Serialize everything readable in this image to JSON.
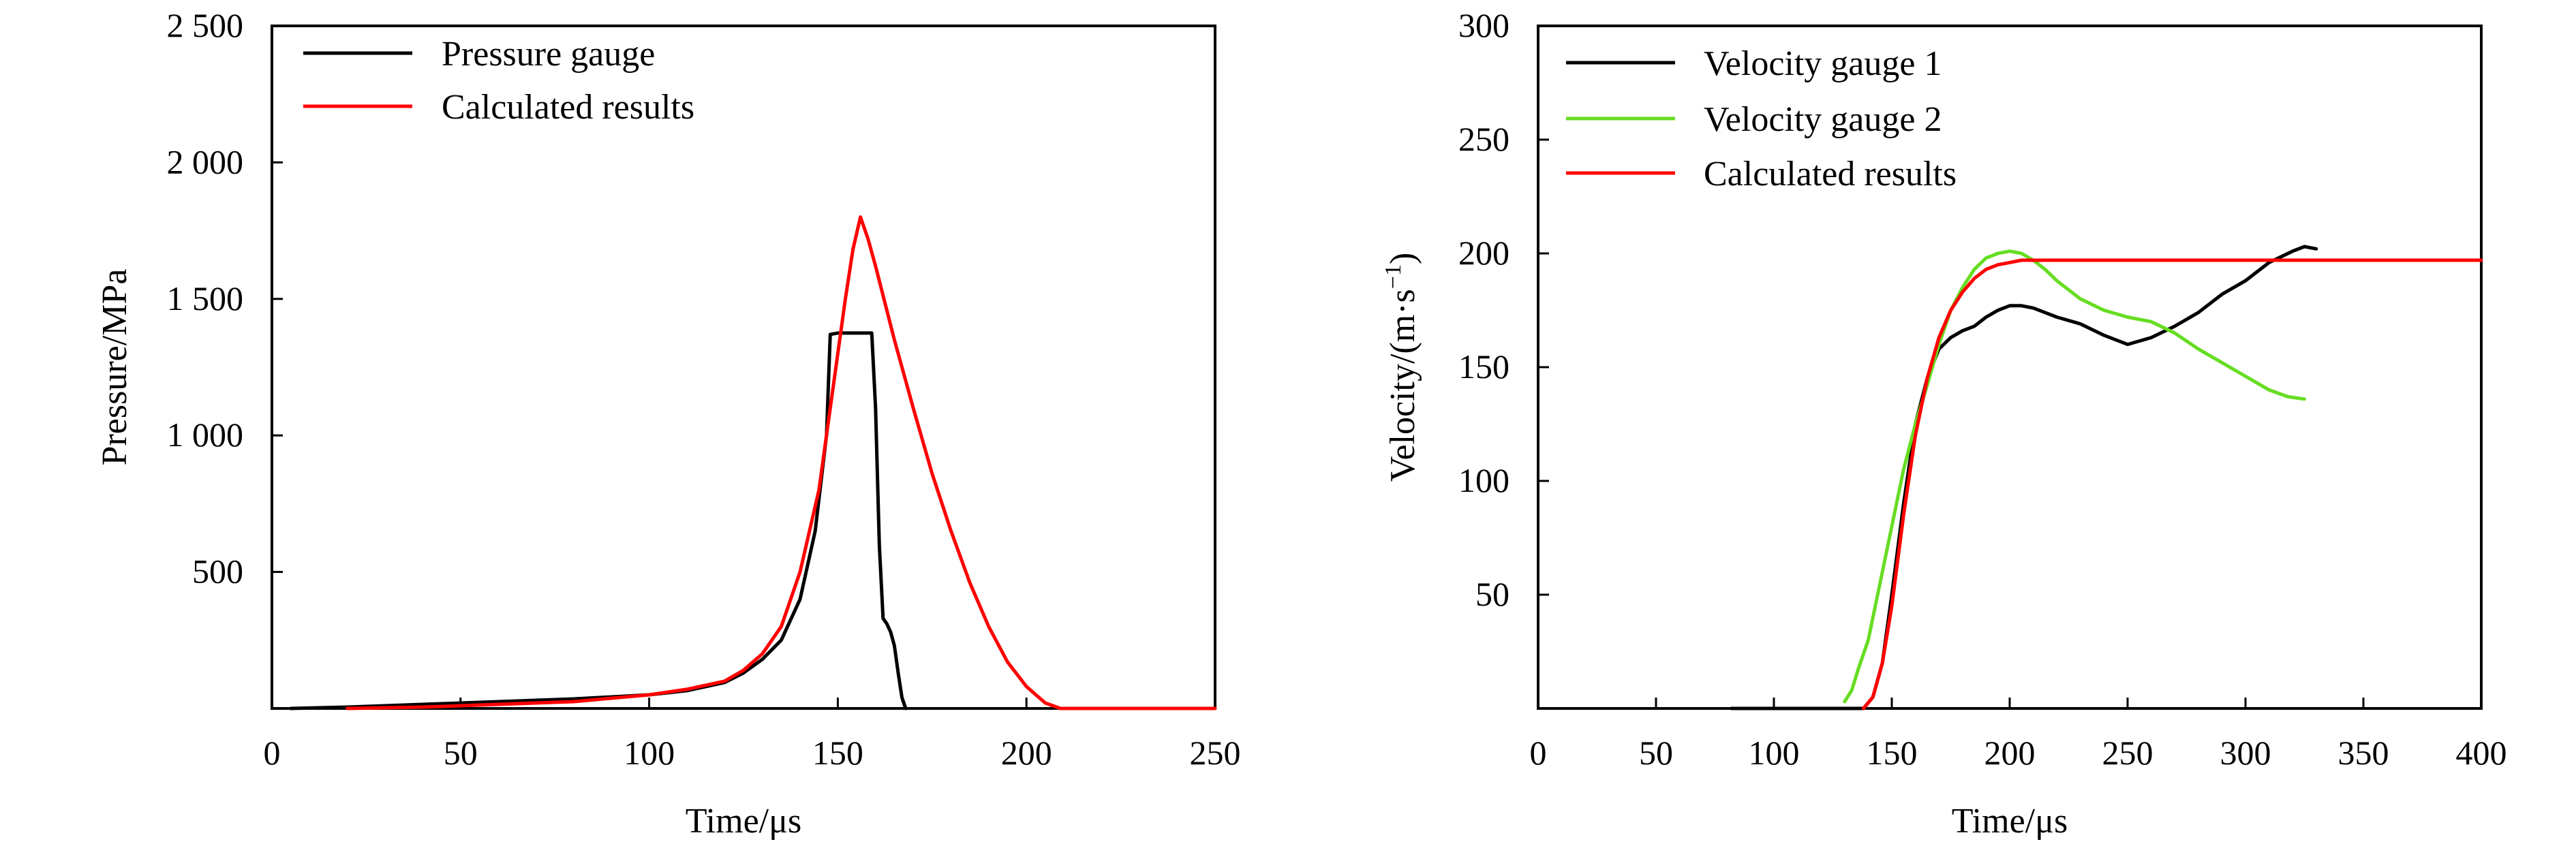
{
  "chart_data": [
    {
      "type": "line",
      "title": "",
      "xlabel": "Time/μs",
      "ylabel": "Pressure/MPa",
      "xlim": [
        0,
        250
      ],
      "ylim": [
        0,
        2500
      ],
      "xticks": [
        0,
        50,
        100,
        150,
        200,
        250
      ],
      "xtick_labels": [
        "0",
        "50",
        "100",
        "150",
        "200",
        "250"
      ],
      "yticks": [
        500,
        1000,
        1500,
        2000,
        2500
      ],
      "ytick_labels": [
        "500",
        "1 000",
        "1 500",
        "2 000",
        "2 500"
      ],
      "grid": false,
      "legend_position": "top-left",
      "series": [
        {
          "name": "Pressure gauge",
          "color": "#000000",
          "x": [
            5,
            20,
            40,
            60,
            80,
            100,
            110,
            120,
            125,
            130,
            135,
            140,
            144,
            147,
            148,
            150,
            152,
            155,
            158,
            159,
            160,
            161,
            162,
            163,
            164,
            165,
            166,
            167,
            168
          ],
          "y": [
            0,
            5,
            15,
            25,
            35,
            50,
            65,
            95,
            130,
            180,
            250,
            400,
            650,
            1000,
            1370,
            1375,
            1375,
            1375,
            1375,
            1375,
            1100,
            600,
            330,
            310,
            280,
            230,
            130,
            40,
            0
          ]
        },
        {
          "name": "Calculated results",
          "color": "#ff0000",
          "x": [
            20,
            40,
            60,
            80,
            100,
            110,
            120,
            125,
            130,
            135,
            140,
            145,
            148,
            150,
            152,
            154,
            156,
            158,
            160,
            165,
            170,
            175,
            180,
            185,
            190,
            195,
            200,
            205,
            209,
            250
          ],
          "y": [
            0,
            5,
            15,
            25,
            50,
            70,
            100,
            140,
            200,
            300,
            500,
            800,
            1100,
            1300,
            1500,
            1680,
            1800,
            1720,
            1620,
            1350,
            1100,
            860,
            650,
            460,
            300,
            170,
            80,
            20,
            0,
            0
          ]
        }
      ]
    },
    {
      "type": "line",
      "title": "",
      "xlabel": "Time/μs",
      "ylabel_main": "Velocity/(m·s",
      "ylabel_sup": "−1",
      "ylabel_end": ")",
      "xlim": [
        0,
        400
      ],
      "ylim": [
        0,
        300
      ],
      "xticks": [
        0,
        50,
        100,
        150,
        200,
        250,
        300,
        350,
        400
      ],
      "xtick_labels": [
        "0",
        "50",
        "100",
        "150",
        "200",
        "250",
        "300",
        "350",
        "400"
      ],
      "yticks": [
        50,
        100,
        150,
        200,
        250,
        300
      ],
      "ytick_labels": [
        "50",
        "100",
        "150",
        "200",
        "250",
        "300"
      ],
      "grid": false,
      "legend_position": "top-left",
      "series": [
        {
          "name": "Velocity gauge 1",
          "color": "#000000",
          "x": [
            82,
            100,
            120,
            138,
            142,
            146,
            150,
            155,
            160,
            165,
            170,
            175,
            180,
            185,
            190,
            195,
            200,
            205,
            210,
            215,
            220,
            230,
            240,
            250,
            260,
            270,
            280,
            290,
            300,
            310,
            320,
            325,
            330
          ],
          "y": [
            0,
            0,
            0,
            0,
            5,
            20,
            50,
            90,
            125,
            145,
            158,
            163,
            166,
            168,
            172,
            175,
            177,
            177,
            176,
            174,
            172,
            169,
            164,
            160,
            163,
            168,
            174,
            182,
            188,
            196,
            201,
            203,
            202
          ]
        },
        {
          "name": "Velocity gauge 2",
          "color": "#66dd22",
          "x": [
            130,
            133,
            136,
            140,
            145,
            150,
            155,
            160,
            165,
            170,
            175,
            180,
            185,
            190,
            195,
            200,
            205,
            210,
            215,
            220,
            230,
            240,
            250,
            260,
            270,
            280,
            290,
            300,
            310,
            318,
            325
          ],
          "y": [
            3,
            8,
            18,
            30,
            55,
            80,
            105,
            125,
            142,
            160,
            175,
            185,
            193,
            198,
            200,
            201,
            200,
            197,
            193,
            188,
            180,
            175,
            172,
            170,
            165,
            158,
            152,
            146,
            140,
            137,
            136
          ]
        },
        {
          "name": "Calculated results",
          "color": "#ff0000",
          "x": [
            138,
            142,
            146,
            150,
            155,
            160,
            165,
            170,
            175,
            180,
            185,
            190,
            195,
            200,
            205,
            210,
            215,
            220,
            250,
            300,
            350,
            400
          ],
          "y": [
            0,
            5,
            20,
            45,
            85,
            120,
            145,
            163,
            175,
            183,
            189,
            193,
            195,
            196,
            197,
            197,
            197,
            197,
            197,
            197,
            197,
            197
          ]
        }
      ]
    }
  ]
}
